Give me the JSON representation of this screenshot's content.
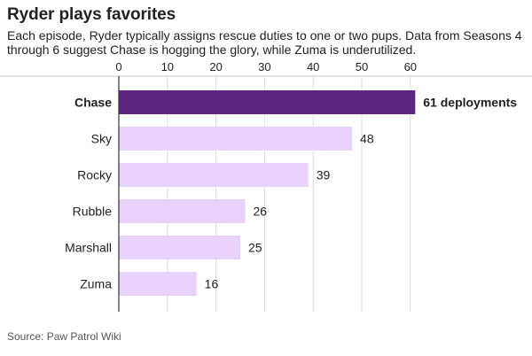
{
  "title": "Ryder plays favorites",
  "subtitle": "Each episode, Ryder typically assigns rescue duties to one or two pups. Data from Seasons 4 through 6 suggest Chase is hogging the glory, while Zuma is underutilized.",
  "source": "Source: Paw Patrol Wiki",
  "colors": {
    "highlight_bar": "#5f2583",
    "default_bar": "#e8d2fa",
    "axis": "#333333",
    "grid": "#dddddd",
    "text": "#222222"
  },
  "chart_data": {
    "type": "bar",
    "orientation": "horizontal",
    "title": "Ryder plays favorites",
    "xlabel": "",
    "ylabel": "",
    "xlim": [
      0,
      60
    ],
    "xticks": [
      0,
      10,
      20,
      30,
      40,
      50,
      60
    ],
    "grid": true,
    "categories": [
      "Chase",
      "Sky",
      "Rocky",
      "Rubble",
      "Marshall",
      "Zuma"
    ],
    "values": [
      61,
      48,
      39,
      26,
      25,
      16
    ],
    "value_labels": [
      "61 deployments",
      "48",
      "39",
      "26",
      "25",
      "16"
    ],
    "highlight": [
      "Chase"
    ]
  }
}
